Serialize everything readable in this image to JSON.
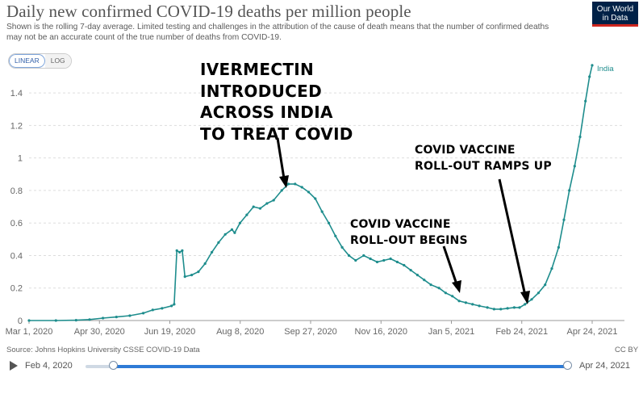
{
  "header": {
    "title": "Daily new confirmed COVID-19 deaths per million people",
    "subtitle": "Shown is the rolling 7-day average. Limited testing and challenges in the attribution of the cause of death means that the number of confirmed deaths may not be an accurate count of the true number of deaths from COVID-19.",
    "logo_line1": "Our World",
    "logo_line2": "in Data"
  },
  "controls": {
    "linear_label": "LINEAR",
    "log_label": "LOG",
    "active_scale": "linear"
  },
  "annotations": [
    {
      "lines": [
        "IVERMECTIN",
        "INTRODUCED",
        "ACROSS INDIA",
        "TO TREAT COVID"
      ]
    },
    {
      "lines": [
        "COVID VACCINE",
        "ROLL-OUT RAMPS UP"
      ]
    },
    {
      "lines": [
        "COVID VACCINE",
        "ROLL-OUT BEGINS"
      ]
    }
  ],
  "footer": {
    "source": "Source: Johns Hopkins University CSSE COVID-19 Data",
    "license": "CC BY"
  },
  "timeline": {
    "start_label": "Feb 4, 2020",
    "end_label": "Apr 24, 2021"
  },
  "colors": {
    "series": "#1e8d8d",
    "grid": "#dddddd",
    "axis_text": "#666666",
    "timeline_active": "#2e7bd6"
  },
  "chart_data": {
    "type": "line",
    "title": "Daily new confirmed COVID-19 deaths per million people",
    "xlabel": "",
    "ylabel": "",
    "x_tick_labels": [
      "Mar 1, 2020",
      "Apr 30, 2020",
      "Jun 19, 2020",
      "Aug 8, 2020",
      "Sep 27, 2020",
      "Nov 16, 2020",
      "Jan 5, 2021",
      "Feb 24, 2021",
      "Apr 24, 2021"
    ],
    "y_ticks": [
      0,
      0.2,
      0.4,
      0.6,
      0.8,
      1,
      1.2,
      1.4
    ],
    "xlim": [
      "2020-03-01",
      "2021-04-24"
    ],
    "ylim": [
      0,
      1.5
    ],
    "grid": "horizontal dashed",
    "series": [
      {
        "name": "India",
        "points": [
          [
            "2020-03-01",
            0
          ],
          [
            "2020-03-21",
            0
          ],
          [
            "2020-04-05",
            0.002
          ],
          [
            "2020-04-15",
            0.006
          ],
          [
            "2020-04-25",
            0.015
          ],
          [
            "2020-05-05",
            0.022
          ],
          [
            "2020-05-15",
            0.03
          ],
          [
            "2020-05-25",
            0.045
          ],
          [
            "2020-06-01",
            0.065
          ],
          [
            "2020-06-08",
            0.075
          ],
          [
            "2020-06-15",
            0.09
          ],
          [
            "2020-06-17",
            0.1
          ],
          [
            "2020-06-19",
            0.43
          ],
          [
            "2020-06-21",
            0.42
          ],
          [
            "2020-06-23",
            0.43
          ],
          [
            "2020-06-25",
            0.27
          ],
          [
            "2020-06-30",
            0.28
          ],
          [
            "2020-07-05",
            0.3
          ],
          [
            "2020-07-10",
            0.35
          ],
          [
            "2020-07-15",
            0.42
          ],
          [
            "2020-07-20",
            0.48
          ],
          [
            "2020-07-25",
            0.53
          ],
          [
            "2020-07-30",
            0.56
          ],
          [
            "2020-08-01",
            0.54
          ],
          [
            "2020-08-05",
            0.6
          ],
          [
            "2020-08-10",
            0.65
          ],
          [
            "2020-08-15",
            0.7
          ],
          [
            "2020-08-20",
            0.69
          ],
          [
            "2020-08-25",
            0.72
          ],
          [
            "2020-08-30",
            0.74
          ],
          [
            "2020-09-05",
            0.8
          ],
          [
            "2020-09-10",
            0.84
          ],
          [
            "2020-09-15",
            0.84
          ],
          [
            "2020-09-20",
            0.82
          ],
          [
            "2020-09-25",
            0.79
          ],
          [
            "2020-09-30",
            0.75
          ],
          [
            "2020-10-05",
            0.67
          ],
          [
            "2020-10-10",
            0.6
          ],
          [
            "2020-10-15",
            0.52
          ],
          [
            "2020-10-20",
            0.45
          ],
          [
            "2020-10-25",
            0.4
          ],
          [
            "2020-10-30",
            0.37
          ],
          [
            "2020-11-05",
            0.4
          ],
          [
            "2020-11-10",
            0.38
          ],
          [
            "2020-11-15",
            0.36
          ],
          [
            "2020-11-20",
            0.37
          ],
          [
            "2020-11-25",
            0.38
          ],
          [
            "2020-11-30",
            0.36
          ],
          [
            "2020-12-05",
            0.34
          ],
          [
            "2020-12-10",
            0.31
          ],
          [
            "2020-12-15",
            0.28
          ],
          [
            "2020-12-20",
            0.25
          ],
          [
            "2020-12-25",
            0.22
          ],
          [
            "2020-12-31",
            0.2
          ],
          [
            "2021-01-05",
            0.17
          ],
          [
            "2021-01-10",
            0.15
          ],
          [
            "2021-01-15",
            0.12
          ],
          [
            "2021-01-20",
            0.11
          ],
          [
            "2021-01-25",
            0.1
          ],
          [
            "2021-01-30",
            0.09
          ],
          [
            "2021-02-05",
            0.08
          ],
          [
            "2021-02-10",
            0.07
          ],
          [
            "2021-02-15",
            0.07
          ],
          [
            "2021-02-20",
            0.075
          ],
          [
            "2021-02-25",
            0.08
          ],
          [
            "2021-03-01",
            0.08
          ],
          [
            "2021-03-05",
            0.1
          ],
          [
            "2021-03-10",
            0.13
          ],
          [
            "2021-03-15",
            0.17
          ],
          [
            "2021-03-20",
            0.22
          ],
          [
            "2021-03-25",
            0.32
          ],
          [
            "2021-03-30",
            0.45
          ],
          [
            "2021-04-03",
            0.62
          ],
          [
            "2021-04-07",
            0.8
          ],
          [
            "2021-04-11",
            0.95
          ],
          [
            "2021-04-15",
            1.13
          ],
          [
            "2021-04-19",
            1.35
          ],
          [
            "2021-04-22",
            1.5
          ],
          [
            "2021-04-24",
            1.57
          ]
        ]
      }
    ]
  }
}
